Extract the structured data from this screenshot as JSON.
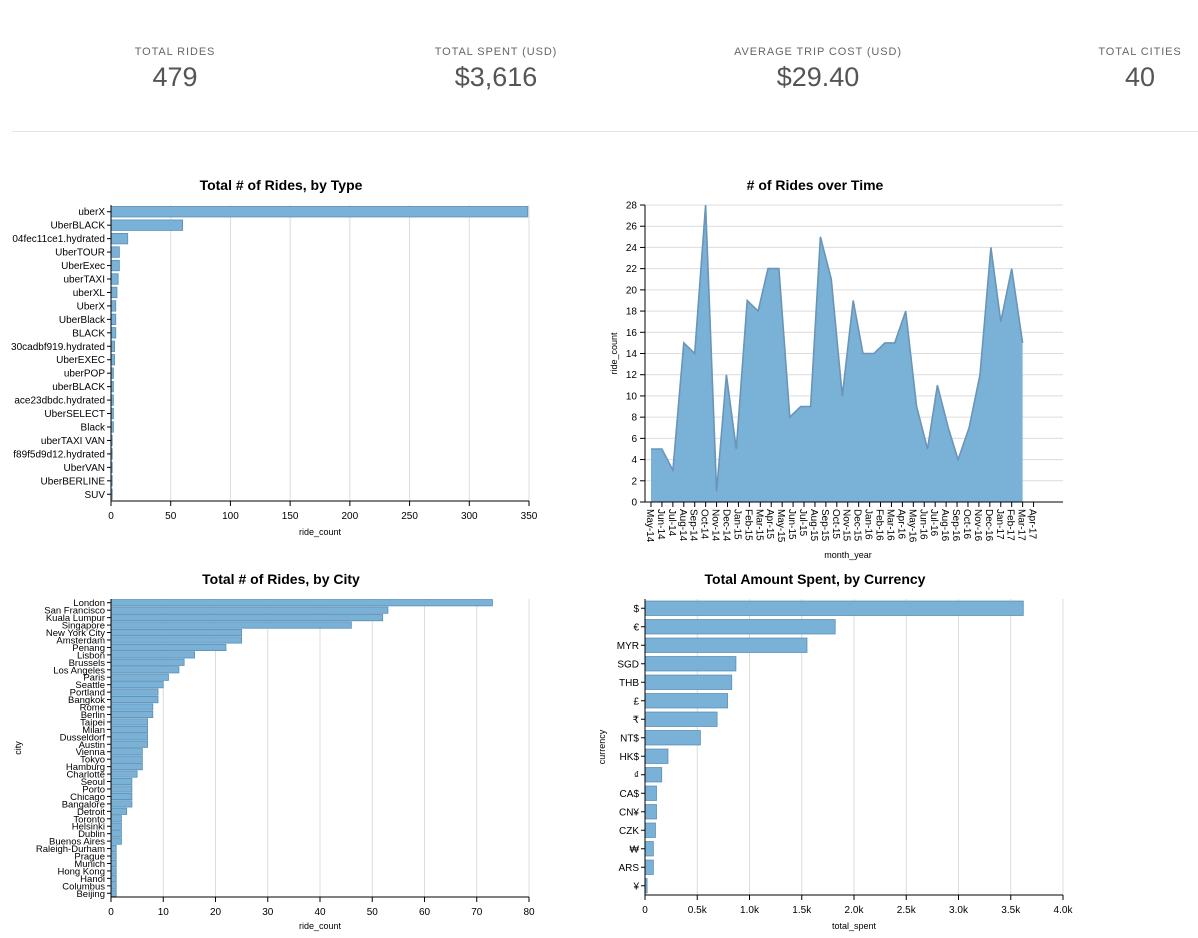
{
  "kpis": [
    {
      "label": "TOTAL RIDES",
      "value": "479"
    },
    {
      "label": "TOTAL SPENT (USD)",
      "value": "$3,616"
    },
    {
      "label": "AVERAGE TRIP COST (USD)",
      "value": "$29.40"
    },
    {
      "label": "TOTAL CITIES",
      "value": "40"
    }
  ],
  "colors": {
    "bar": "#7ab1d6",
    "bar_stroke": "#5a8fb6",
    "area": "#7ab1d6",
    "grid": "#dcdcdc"
  },
  "chart_data": [
    {
      "id": "by-type",
      "type": "bar",
      "orientation": "horizontal",
      "title": "Total # of Rides, by Type",
      "xlabel": "ride_count",
      "ylabel": "",
      "xlim": [
        0,
        350
      ],
      "xticks": [
        0,
        50,
        100,
        150,
        200,
        250,
        300,
        350
      ],
      "xtick_labels": [
        "0",
        "50",
        "100",
        "150",
        "200",
        "250",
        "300",
        "350"
      ],
      "categories": [
        "uberX",
        "UberBLACK",
        "04fec11ce1.hydrated",
        "UberTOUR",
        "UberExec",
        "uberTAXI",
        "uberXL",
        "UberX",
        "UberBlack",
        "BLACK",
        "30cadbf919.hydrated",
        "UberEXEC",
        "uberPOP",
        "uberBLACK",
        "ace23dbdc.hydrated",
        "UberSELECT",
        "Black",
        "uberTAXI VAN",
        "f89f5d9d12.hydrated",
        "UberVAN",
        "UberBERLINE",
        "SUV"
      ],
      "values": [
        349,
        60,
        14,
        7,
        7,
        6,
        5,
        4,
        4,
        4,
        3,
        3,
        2,
        2,
        2,
        2,
        2,
        1,
        1,
        1,
        1,
        1
      ]
    },
    {
      "id": "over-time",
      "type": "area",
      "title": "# of Rides over Time",
      "xlabel": "month_year",
      "ylabel": "ride_count",
      "ylim": [
        0,
        28
      ],
      "yticks": [
        0,
        2,
        4,
        6,
        8,
        10,
        12,
        14,
        16,
        18,
        20,
        22,
        24,
        26,
        28
      ],
      "ytick_labels": [
        "0",
        "2",
        "4",
        "6",
        "8",
        "10",
        "12",
        "14",
        "16",
        "18",
        "20",
        "22",
        "24",
        "26",
        "28"
      ],
      "x": [
        "May-14",
        "Jun-14",
        "Jul-14",
        "Aug-14",
        "Sep-14",
        "Oct-14",
        "Nov-14",
        "Dec-14",
        "Jan-15",
        "Feb-15",
        "Mar-15",
        "Apr-15",
        "May-15",
        "Jun-15",
        "Jul-15",
        "Aug-15",
        "Sep-15",
        "Oct-15",
        "Nov-15",
        "Dec-15",
        "Jan-16",
        "Feb-16",
        "Mar-16",
        "Apr-16",
        "May-16",
        "Jun-16",
        "Jul-16",
        "Aug-16",
        "Sep-16",
        "Oct-16",
        "Nov-16",
        "Dec-16",
        "Jan-17",
        "Feb-17",
        "Mar-17",
        "Apr-17"
      ],
      "points": [
        {
          "x": 0,
          "y": 5
        },
        {
          "x": 1.0,
          "y": 5
        },
        {
          "x": 2.0,
          "y": 3
        },
        {
          "x": 3.0,
          "y": 15
        },
        {
          "x": 4.0,
          "y": 14
        },
        {
          "x": 5.0,
          "y": 28
        },
        {
          "x": 6.0,
          "y": 1
        },
        {
          "x": 6.9,
          "y": 12
        },
        {
          "x": 7.8,
          "y": 5
        },
        {
          "x": 8.8,
          "y": 19
        },
        {
          "x": 9.8,
          "y": 18
        },
        {
          "x": 10.7,
          "y": 22
        },
        {
          "x": 11.7,
          "y": 22
        },
        {
          "x": 12.7,
          "y": 8
        },
        {
          "x": 13.7,
          "y": 9
        },
        {
          "x": 14.6,
          "y": 9
        },
        {
          "x": 15.5,
          "y": 25
        },
        {
          "x": 16.5,
          "y": 21
        },
        {
          "x": 17.5,
          "y": 10
        },
        {
          "x": 18.5,
          "y": 19
        },
        {
          "x": 19.4,
          "y": 14
        },
        {
          "x": 20.4,
          "y": 14
        },
        {
          "x": 21.4,
          "y": 15
        },
        {
          "x": 22.3,
          "y": 15
        },
        {
          "x": 23.3,
          "y": 18
        },
        {
          "x": 24.3,
          "y": 9
        },
        {
          "x": 25.3,
          "y": 5
        },
        {
          "x": 26.2,
          "y": 11
        },
        {
          "x": 27.2,
          "y": 7
        },
        {
          "x": 28.1,
          "y": 4
        },
        {
          "x": 29.1,
          "y": 7
        },
        {
          "x": 30.1,
          "y": 12
        },
        {
          "x": 31.1,
          "y": 24
        },
        {
          "x": 32.0,
          "y": 17
        },
        {
          "x": 33.0,
          "y": 22
        },
        {
          "x": 34.0,
          "y": 15
        }
      ]
    },
    {
      "id": "by-city",
      "type": "bar",
      "orientation": "horizontal",
      "title": "Total # of Rides, by City",
      "xlabel": "ride_count",
      "ylabel": "city",
      "xlim": [
        0,
        80
      ],
      "xticks": [
        0,
        10,
        20,
        30,
        40,
        50,
        60,
        70,
        80
      ],
      "xtick_labels": [
        "0",
        "10",
        "20",
        "30",
        "40",
        "50",
        "60",
        "70",
        "80"
      ],
      "categories": [
        "London",
        "San Francisco",
        "Kuala Lumpur",
        "Singapore",
        "New York City",
        "Amsterdam",
        "Penang",
        "Lisbon",
        "Brussels",
        "Los Angeles",
        "Paris",
        "Seattle",
        "Portland",
        "Bangkok",
        "Rome",
        "Berlin",
        "Taipei",
        "Milan",
        "Dusseldorf",
        "Austin",
        "Vienna",
        "Tokyo",
        "Hamburg",
        "Charlotte",
        "Seoul",
        "Porto",
        "Chicago",
        "Bangalore",
        "Detroit",
        "Toronto",
        "Helsinki",
        "Dublin",
        "Buenos Aires",
        "Raleigh-Durham",
        "Prague",
        "Munich",
        "Hong Kong",
        "Hanoi",
        "Columbus",
        "Beijing"
      ],
      "values": [
        73,
        53,
        52,
        46,
        25,
        25,
        22,
        16,
        14,
        13,
        11,
        10,
        9,
        9,
        8,
        8,
        7,
        7,
        7,
        7,
        6,
        6,
        6,
        5,
        4,
        4,
        4,
        4,
        3,
        2,
        2,
        2,
        2,
        1,
        1,
        1,
        1,
        1,
        1,
        1
      ]
    },
    {
      "id": "by-currency",
      "type": "bar",
      "orientation": "horizontal",
      "title": "Total Amount Spent, by Currency",
      "xlabel": "total_spent",
      "ylabel": "currency",
      "xlim": [
        0,
        4000
      ],
      "xticks": [
        0,
        500,
        1000,
        1500,
        2000,
        2500,
        3000,
        3500,
        4000
      ],
      "xtick_labels": [
        "0",
        "0.5k",
        "1.0k",
        "1.5k",
        "2.0k",
        "2.5k",
        "3.0k",
        "3.5k",
        "4.0k"
      ],
      "categories": [
        "$",
        "€",
        "MYR",
        "SGD",
        "THB",
        "£",
        "₹",
        "NT$",
        "HK$",
        "₫",
        "CA$",
        "CN¥",
        "CZK",
        "₩",
        "ARS",
        "¥"
      ],
      "values": [
        3620,
        1820,
        1550,
        870,
        830,
        790,
        690,
        530,
        220,
        160,
        110,
        110,
        100,
        80,
        80,
        20
      ]
    }
  ]
}
